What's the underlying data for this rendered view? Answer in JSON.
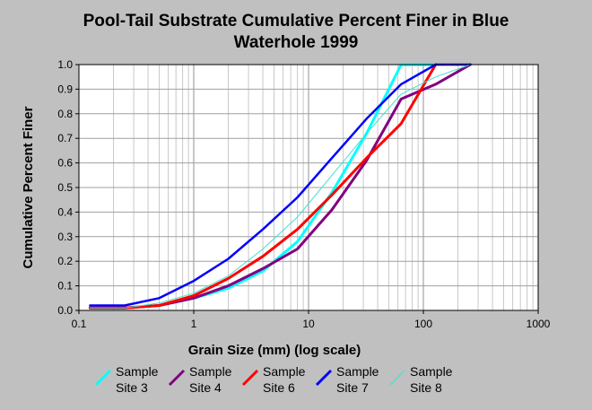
{
  "title_lines": [
    "Pool-Tail Substrate Cumulative Percent Finer in Blue",
    "Waterhole 1999"
  ],
  "chart_data": {
    "type": "line",
    "title": "Pool-Tail Substrate Cumulative Percent Finer in Blue Waterhole 1999",
    "xlabel": "Grain Size (mm) (log scale)",
    "ylabel": "Cumulative Percent Finer",
    "x_scale": "log",
    "xlim": [
      0.1,
      1000
    ],
    "ylim": [
      0.0,
      1.0
    ],
    "x_ticks": [
      "0.1",
      "1",
      "10",
      "100",
      "1000"
    ],
    "y_ticks": [
      "0.0",
      "0.1",
      "0.2",
      "0.3",
      "0.4",
      "0.5",
      "0.6",
      "0.7",
      "0.8",
      "0.9",
      "1.0"
    ],
    "grid": true,
    "legend_position": "bottom",
    "series": [
      {
        "name": "Sample Site 3",
        "color": "#00ffff",
        "width": 3,
        "points": [
          [
            0.125,
            0.01
          ],
          [
            0.25,
            0.01
          ],
          [
            0.5,
            0.02
          ],
          [
            1,
            0.05
          ],
          [
            2,
            0.09
          ],
          [
            4,
            0.16
          ],
          [
            8,
            0.28
          ],
          [
            16,
            0.48
          ],
          [
            32,
            0.72
          ],
          [
            64,
            1.0
          ],
          [
            128,
            1.0
          ]
        ]
      },
      {
        "name": "Sample Site 4",
        "color": "#800080",
        "width": 3,
        "points": [
          [
            0.125,
            0.01
          ],
          [
            0.25,
            0.01
          ],
          [
            0.5,
            0.02
          ],
          [
            1,
            0.05
          ],
          [
            2,
            0.1
          ],
          [
            4,
            0.17
          ],
          [
            8,
            0.25
          ],
          [
            16,
            0.41
          ],
          [
            32,
            0.61
          ],
          [
            64,
            0.86
          ],
          [
            128,
            0.92
          ],
          [
            256,
            1.0
          ]
        ]
      },
      {
        "name": "Sample Site 6",
        "color": "#ff0000",
        "width": 3,
        "points": [
          [
            0.125,
            0.01
          ],
          [
            0.25,
            0.01
          ],
          [
            0.5,
            0.02
          ],
          [
            1,
            0.06
          ],
          [
            2,
            0.13
          ],
          [
            4,
            0.22
          ],
          [
            8,
            0.33
          ],
          [
            16,
            0.47
          ],
          [
            32,
            0.62
          ],
          [
            64,
            0.76
          ],
          [
            128,
            1.0
          ]
        ]
      },
      {
        "name": "Sample Site 7",
        "color": "#0000ff",
        "width": 2.5,
        "points": [
          [
            0.125,
            0.02
          ],
          [
            0.25,
            0.02
          ],
          [
            0.5,
            0.05
          ],
          [
            1,
            0.12
          ],
          [
            2,
            0.21
          ],
          [
            4,
            0.33
          ],
          [
            8,
            0.46
          ],
          [
            16,
            0.62
          ],
          [
            32,
            0.78
          ],
          [
            64,
            0.92
          ],
          [
            128,
            1.0
          ],
          [
            256,
            1.0
          ]
        ]
      },
      {
        "name": "Sample Site 8",
        "color": "#40e0d0",
        "width": 1,
        "points": [
          [
            0.125,
            0.01
          ],
          [
            0.25,
            0.01
          ],
          [
            0.5,
            0.03
          ],
          [
            1,
            0.07
          ],
          [
            2,
            0.14
          ],
          [
            4,
            0.25
          ],
          [
            8,
            0.38
          ],
          [
            16,
            0.55
          ],
          [
            32,
            0.72
          ],
          [
            64,
            0.88
          ],
          [
            128,
            0.95
          ],
          [
            256,
            1.0
          ]
        ]
      }
    ]
  },
  "legend": [
    {
      "line1": "Sample",
      "line2": "Site 3",
      "color": "#00ffff"
    },
    {
      "line1": "Sample",
      "line2": "Site 4",
      "color": "#800080"
    },
    {
      "line1": "Sample",
      "line2": "Site 6",
      "color": "#ff0000"
    },
    {
      "line1": "Sample",
      "line2": "Site 7",
      "color": "#0000ff"
    },
    {
      "line1": "Sample",
      "line2": "Site 8",
      "color": "#40e0d0"
    }
  ]
}
